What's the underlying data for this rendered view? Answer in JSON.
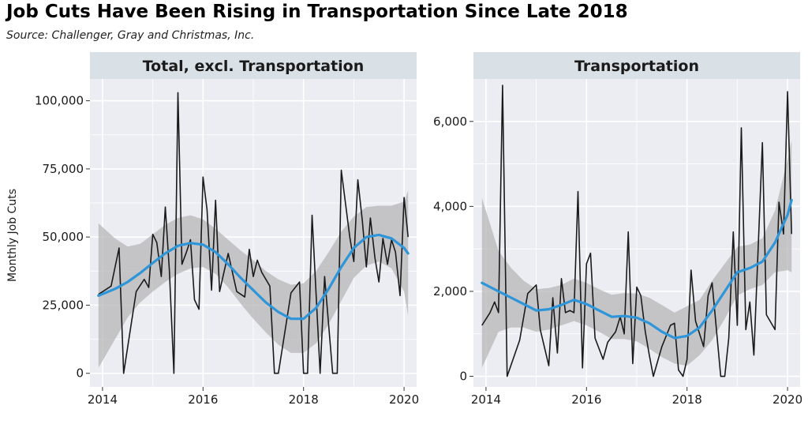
{
  "title": "Job Cuts Have Been Rising in Transportation Since Late 2018",
  "subtitle": "Source: Challenger, Gray and Christmas, Inc.",
  "colors": {
    "panel_background": "#ebedf2",
    "strip_background": "#d9e0e6",
    "grid": "#ffffff",
    "line": "#1a1a1a",
    "smooth": "#2e95d9",
    "band": "#b4b4b4"
  },
  "chart_data": [
    {
      "type": "line",
      "panel": "Total, excl. Transportation",
      "ylabel": "Monthly Job Cuts",
      "xlabel": "",
      "xlim": [
        2013.75,
        2020.25
      ],
      "ylim": [
        -5000,
        108000
      ],
      "x_ticks": [
        2014,
        2016,
        2018,
        2020
      ],
      "x_tick_labels": [
        "2014",
        "2016",
        "2018",
        "2020"
      ],
      "y_ticks": [
        0,
        25000,
        50000,
        75000,
        100000
      ],
      "y_tick_labels": [
        "0",
        "25,000",
        "50,000",
        "75,000",
        "100,000"
      ],
      "grid": true,
      "series": [
        {
          "role": "monthly",
          "x": [
            2013.92,
            2014.17,
            2014.33,
            2014.42,
            2014.67,
            2014.83,
            2014.92,
            2015.0,
            2015.08,
            2015.17,
            2015.25,
            2015.33,
            2015.42,
            2015.5,
            2015.58,
            2015.67,
            2015.75,
            2015.83,
            2015.92,
            2016.0,
            2016.08,
            2016.17,
            2016.25,
            2016.33,
            2016.5,
            2016.67,
            2016.83,
            2016.92,
            2017.0,
            2017.08,
            2017.17,
            2017.33,
            2017.42,
            2017.5,
            2017.75,
            2017.92,
            2018.0,
            2018.08,
            2018.17,
            2018.33,
            2018.42,
            2018.58,
            2018.67,
            2018.75,
            2018.92,
            2019.0,
            2019.08,
            2019.17,
            2019.25,
            2019.33,
            2019.42,
            2019.5,
            2019.58,
            2019.67,
            2019.75,
            2019.83,
            2019.92,
            2020.0,
            2020.08
          ],
          "y": [
            29000,
            32000,
            46000,
            0,
            30000,
            34500,
            31500,
            51000,
            48000,
            35500,
            61000,
            38000,
            0,
            103000,
            40000,
            44500,
            49000,
            27000,
            23500,
            72000,
            60000,
            30500,
            63500,
            30000,
            44000,
            30000,
            28000,
            45500,
            35500,
            41500,
            37000,
            32000,
            0,
            0,
            29500,
            33500,
            0,
            0,
            58000,
            0,
            35500,
            0,
            0,
            74500,
            50000,
            41000,
            71000,
            56000,
            39000,
            57000,
            42500,
            33500,
            49500,
            40000,
            49000,
            44500,
            28500,
            64500,
            50000
          ]
        },
        {
          "role": "smooth",
          "x": [
            2013.92,
            2014.25,
            2014.5,
            2014.75,
            2015.0,
            2015.25,
            2015.5,
            2015.75,
            2016.0,
            2016.25,
            2016.5,
            2016.75,
            2017.0,
            2017.25,
            2017.5,
            2017.75,
            2018.0,
            2018.25,
            2018.5,
            2018.75,
            2019.0,
            2019.25,
            2019.5,
            2019.75,
            2020.0,
            2020.08
          ],
          "y": [
            28500,
            31000,
            33500,
            36800,
            40500,
            44000,
            46800,
            47800,
            47200,
            44500,
            40000,
            35000,
            30500,
            26000,
            22500,
            20000,
            20000,
            24000,
            31000,
            39000,
            46000,
            50000,
            50800,
            49500,
            46000,
            44000
          ],
          "lower": [
            2000,
            12500,
            20500,
            26000,
            30000,
            33500,
            36500,
            38500,
            39000,
            36500,
            31500,
            25500,
            20000,
            15000,
            10500,
            7500,
            7500,
            11000,
            18000,
            26500,
            35000,
            39500,
            41000,
            38500,
            30000,
            21000
          ],
          "upper": [
            55000,
            49500,
            46500,
            47500,
            51000,
            54500,
            57000,
            58000,
            56500,
            53000,
            49000,
            45000,
            41500,
            37500,
            34500,
            32500,
            33000,
            37500,
            44500,
            52000,
            57500,
            61000,
            61500,
            61500,
            63000,
            67000
          ]
        }
      ]
    },
    {
      "type": "line",
      "panel": "Transportation",
      "ylabel": "",
      "xlabel": "",
      "xlim": [
        2013.75,
        2020.25
      ],
      "ylim": [
        -250,
        7000
      ],
      "x_ticks": [
        2014,
        2016,
        2018,
        2020
      ],
      "x_tick_labels": [
        "2014",
        "2016",
        "2018",
        "2020"
      ],
      "y_ticks": [
        0,
        2000,
        4000,
        6000
      ],
      "y_tick_labels": [
        "0",
        "2,000",
        "4,000",
        "6,000"
      ],
      "grid": true,
      "series": [
        {
          "role": "monthly",
          "x": [
            2013.92,
            2014.08,
            2014.17,
            2014.25,
            2014.33,
            2014.42,
            2014.67,
            2014.83,
            2015.0,
            2015.08,
            2015.25,
            2015.33,
            2015.42,
            2015.5,
            2015.58,
            2015.67,
            2015.75,
            2015.83,
            2015.92,
            2016.0,
            2016.08,
            2016.17,
            2016.33,
            2016.42,
            2016.58,
            2016.67,
            2016.75,
            2016.83,
            2016.92,
            2017.0,
            2017.08,
            2017.17,
            2017.25,
            2017.33,
            2017.5,
            2017.67,
            2017.75,
            2017.83,
            2017.92,
            2018.0,
            2018.08,
            2018.17,
            2018.33,
            2018.42,
            2018.5,
            2018.67,
            2018.75,
            2018.83,
            2018.92,
            2019.0,
            2019.08,
            2019.17,
            2019.25,
            2019.33,
            2019.5,
            2019.58,
            2019.75,
            2019.83,
            2019.92,
            2020.0,
            2020.08
          ],
          "y": [
            1200,
            1500,
            1750,
            1500,
            6850,
            0,
            850,
            1950,
            2150,
            1100,
            250,
            1850,
            550,
            2300,
            1500,
            1550,
            1500,
            4350,
            200,
            2650,
            2900,
            900,
            400,
            800,
            1050,
            1400,
            1000,
            3400,
            300,
            2100,
            1900,
            1050,
            500,
            0,
            700,
            1200,
            1250,
            150,
            0,
            400,
            2500,
            1300,
            700,
            1900,
            2200,
            0,
            0,
            900,
            3400,
            1200,
            5850,
            1100,
            1750,
            500,
            5500,
            1450,
            1100,
            4100,
            3350,
            6700,
            3350
          ]
        },
        {
          "role": "smooth",
          "x": [
            2013.92,
            2014.25,
            2014.5,
            2014.75,
            2015.0,
            2015.25,
            2015.5,
            2015.75,
            2016.0,
            2016.25,
            2016.5,
            2016.75,
            2017.0,
            2017.25,
            2017.5,
            2017.75,
            2018.0,
            2018.25,
            2018.5,
            2018.75,
            2019.0,
            2019.25,
            2019.5,
            2019.75,
            2020.0,
            2020.08
          ],
          "y": [
            2200,
            2000,
            1850,
            1700,
            1550,
            1580,
            1680,
            1800,
            1700,
            1550,
            1400,
            1420,
            1380,
            1250,
            1050,
            900,
            950,
            1150,
            1550,
            2000,
            2450,
            2550,
            2700,
            3150,
            3800,
            4150
          ],
          "lower": [
            200,
            1050,
            1150,
            1150,
            1050,
            1100,
            1200,
            1300,
            1200,
            1050,
            880,
            880,
            820,
            650,
            450,
            300,
            250,
            500,
            850,
            1350,
            1900,
            2050,
            2150,
            2450,
            2500,
            2450
          ],
          "upper": [
            4200,
            2950,
            2550,
            2250,
            2050,
            2080,
            2150,
            2300,
            2200,
            2050,
            1920,
            1960,
            1950,
            1850,
            1680,
            1500,
            1650,
            1800,
            2250,
            2650,
            3050,
            3100,
            3250,
            3900,
            5100,
            5550
          ]
        }
      ]
    }
  ]
}
